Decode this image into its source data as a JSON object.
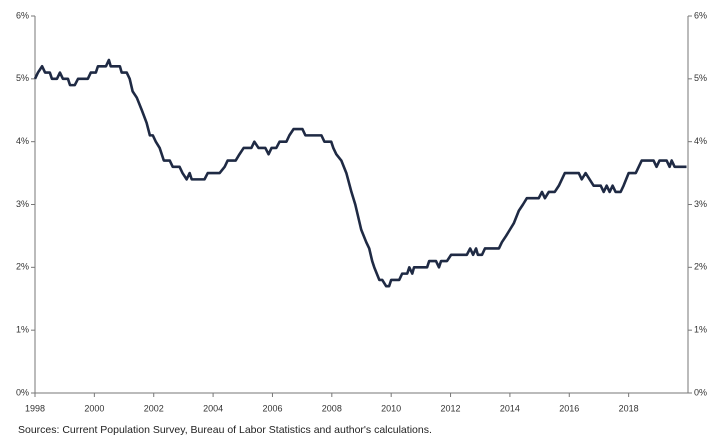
{
  "chart_data": {
    "type": "line",
    "source": "Sources: Current Population Survey, Bureau of Labor Statistics and author's calculations.",
    "xlim": [
      1998,
      2020
    ],
    "xticks": [
      1998,
      2000,
      2002,
      2004,
      2006,
      2008,
      2010,
      2012,
      2014,
      2016,
      2018
    ],
    "ylim": [
      0,
      6
    ],
    "yticks": [
      {
        "value": 0,
        "label": "0%"
      },
      {
        "value": 1,
        "label": "1%"
      },
      {
        "value": 2,
        "label": "2%"
      },
      {
        "value": 3,
        "label": "3%"
      },
      {
        "value": 4,
        "label": "4%"
      },
      {
        "value": 5,
        "label": "5%"
      },
      {
        "value": 6,
        "label": "6%"
      }
    ],
    "y2lim": [
      0,
      6
    ],
    "y2ticks": [
      {
        "value": 0,
        "label": "0%"
      },
      {
        "value": 1,
        "label": "1%"
      },
      {
        "value": 2,
        "label": "2%"
      },
      {
        "value": 3,
        "label": "3%"
      },
      {
        "value": 4,
        "label": "4%"
      },
      {
        "value": 5,
        "label": "5%"
      },
      {
        "value": 6,
        "label": "6%"
      }
    ],
    "grid": false,
    "series": [
      {
        "color": "#1f2a44",
        "x": [
          1998.0,
          1998.1,
          1998.24,
          1998.34,
          1998.5,
          1998.57,
          1998.74,
          1998.84,
          1998.94,
          1999.11,
          1999.18,
          1999.34,
          1999.45,
          1999.78,
          1999.88,
          2000.05,
          2000.12,
          2000.39,
          2000.49,
          2000.55,
          2000.86,
          2000.92,
          2001.09,
          2001.19,
          2001.29,
          2001.43,
          2001.6,
          2001.76,
          2001.87,
          2001.97,
          2002.07,
          2002.2,
          2002.34,
          2002.54,
          2002.64,
          2002.87,
          2002.97,
          2003.11,
          2003.21,
          2003.28,
          2003.71,
          2003.82,
          2004.22,
          2004.39,
          2004.49,
          2004.76,
          2004.89,
          2005.03,
          2005.29,
          2005.39,
          2005.53,
          2005.76,
          2005.87,
          2005.97,
          2006.13,
          2006.24,
          2006.47,
          2006.57,
          2006.71,
          2007.01,
          2007.11,
          2007.65,
          2007.75,
          2007.98,
          2008.05,
          2008.15,
          2008.32,
          2008.49,
          2008.66,
          2008.79,
          2008.99,
          2009.16,
          2009.26,
          2009.36,
          2009.43,
          2009.6,
          2009.7,
          2009.83,
          2009.93,
          2010.0,
          2010.27,
          2010.37,
          2010.54,
          2010.61,
          2010.71,
          2010.77,
          2011.21,
          2011.28,
          2011.51,
          2011.61,
          2011.68,
          2011.88,
          2012.02,
          2012.55,
          2012.66,
          2012.76,
          2012.86,
          2012.92,
          2013.06,
          2013.16,
          2013.63,
          2013.73,
          2013.87,
          2014.0,
          2014.13,
          2014.3,
          2014.44,
          2014.57,
          2014.97,
          2015.08,
          2015.18,
          2015.31,
          2015.51,
          2015.65,
          2015.85,
          2016.32,
          2016.42,
          2016.55,
          2016.82,
          2017.06,
          2017.16,
          2017.26,
          2017.36,
          2017.46,
          2017.56,
          2017.73,
          2017.83,
          2018.0,
          2018.24,
          2018.34,
          2018.44,
          2018.84,
          2018.94,
          2019.04,
          2019.28,
          2019.38,
          2019.45,
          2019.55,
          2019.95
        ],
        "values": [
          5.0,
          5.1,
          5.2,
          5.1,
          5.1,
          5.0,
          5.0,
          5.1,
          5.0,
          5.0,
          4.9,
          4.9,
          5.0,
          5.0,
          5.1,
          5.1,
          5.2,
          5.2,
          5.3,
          5.2,
          5.2,
          5.1,
          5.1,
          5.0,
          4.8,
          4.7,
          4.5,
          4.3,
          4.1,
          4.1,
          4.0,
          3.9,
          3.7,
          3.7,
          3.6,
          3.6,
          3.5,
          3.4,
          3.5,
          3.4,
          3.4,
          3.5,
          3.5,
          3.6,
          3.7,
          3.7,
          3.8,
          3.9,
          3.9,
          4.0,
          3.9,
          3.9,
          3.8,
          3.9,
          3.9,
          4.0,
          4.0,
          4.1,
          4.2,
          4.2,
          4.1,
          4.1,
          4.0,
          4.0,
          3.9,
          3.8,
          3.7,
          3.5,
          3.2,
          3.0,
          2.6,
          2.4,
          2.3,
          2.1,
          2.0,
          1.8,
          1.8,
          1.7,
          1.7,
          1.8,
          1.8,
          1.9,
          1.9,
          2.0,
          1.9,
          2.0,
          2.0,
          2.1,
          2.1,
          2.0,
          2.1,
          2.1,
          2.2,
          2.2,
          2.3,
          2.2,
          2.3,
          2.2,
          2.2,
          2.3,
          2.3,
          2.4,
          2.5,
          2.6,
          2.7,
          2.9,
          3.0,
          3.1,
          3.1,
          3.2,
          3.1,
          3.2,
          3.2,
          3.3,
          3.5,
          3.5,
          3.4,
          3.5,
          3.3,
          3.3,
          3.2,
          3.3,
          3.2,
          3.3,
          3.2,
          3.2,
          3.3,
          3.5,
          3.5,
          3.6,
          3.7,
          3.7,
          3.6,
          3.7,
          3.7,
          3.6,
          3.7,
          3.6,
          3.6
        ]
      }
    ]
  }
}
